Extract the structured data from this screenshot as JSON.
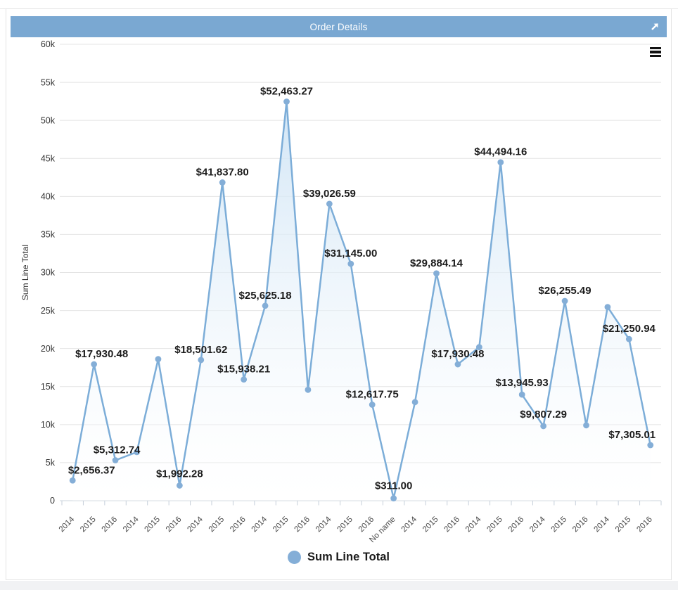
{
  "window": {
    "title_bar": "Order Details",
    "expand_icon": "arrow-up-right-icon",
    "menu_icon": "hamburger-menu-icon"
  },
  "colors": {
    "header_bg": "#7aa8d2",
    "line": "#7cadd8",
    "dot": "#84aed7",
    "area_top": "#cfe4f5",
    "area_bottom": "#ffffff",
    "grid": "#e4e4e4",
    "axis_line": "#ccd4dc",
    "tick": "#c6cfda",
    "y_tick_text": "#333333",
    "x_tick_text": "#4a4a4a",
    "data_label_text": "#1c1c1c"
  },
  "chart_data": {
    "type": "area",
    "title": "Order Details",
    "xlabel": "",
    "ylabel": "Sum Line Total",
    "ylim": [
      0,
      60000
    ],
    "y_tick_step": 5000,
    "y_tick_labels": [
      "0",
      "5k",
      "10k",
      "15k",
      "20k",
      "25k",
      "30k",
      "35k",
      "40k",
      "45k",
      "50k",
      "55k",
      "60k"
    ],
    "grid": true,
    "x_labels_rotated_degrees": -45,
    "legend": {
      "position": "bottom",
      "items": [
        {
          "label": "Sum Line Total",
          "color": "#84aed7"
        }
      ]
    },
    "categories": [
      "2014",
      "2015",
      "2016",
      "2014",
      "2015",
      "2016",
      "2014",
      "2015",
      "2016",
      "2014",
      "2015",
      "2016",
      "2014",
      "2015",
      "2016",
      "No name",
      "2014",
      "2015",
      "2016",
      "2014",
      "2015",
      "2016",
      "2014",
      "2015",
      "2016",
      "2014",
      "2015",
      "2016"
    ],
    "series": [
      {
        "name": "Sum Line Total",
        "values": [
          2656.37,
          17930.48,
          5312.74,
          6390,
          18610,
          1992.28,
          18501.62,
          41837.8,
          15938.21,
          25625.18,
          52463.27,
          14580,
          39026.59,
          31145.0,
          12617.75,
          311.0,
          12960,
          29884.14,
          17930.48,
          20190,
          44494.16,
          13945.93,
          9807.29,
          26255.49,
          9910,
          25460,
          21250.94,
          7305.01
        ],
        "point_labels": [
          "$2,656.37",
          "$17,930.48",
          "$5,312.74",
          null,
          null,
          "$1,992.28",
          "$18,501.62",
          "$41,837.80",
          "$15,938.21",
          "$25,625.18",
          "$52,463.27",
          null,
          "$39,026.59",
          "$31,145.00",
          "$12,617.75",
          "$311.00",
          null,
          "$29,884.14",
          "$17,930.48",
          null,
          "$44,494.16",
          "$13,945.93",
          "$9,807.29",
          "$26,255.49",
          null,
          null,
          "$21,250.94",
          "$7,305.01"
        ],
        "unlabeled_values_estimated_indices": [
          3,
          4,
          11,
          16,
          19,
          24,
          25
        ]
      }
    ],
    "label_offsets": {
      "0": {
        "dx": 27
      },
      "1": {
        "dx": 11
      },
      "2": {
        "dx": 2
      },
      "5": {
        "dy": -2
      },
      "15": {
        "dy": -3
      },
      "21": {
        "dy": -2
      },
      "22": {
        "dy": -2
      },
      "27": {
        "dx": -26
      }
    }
  }
}
